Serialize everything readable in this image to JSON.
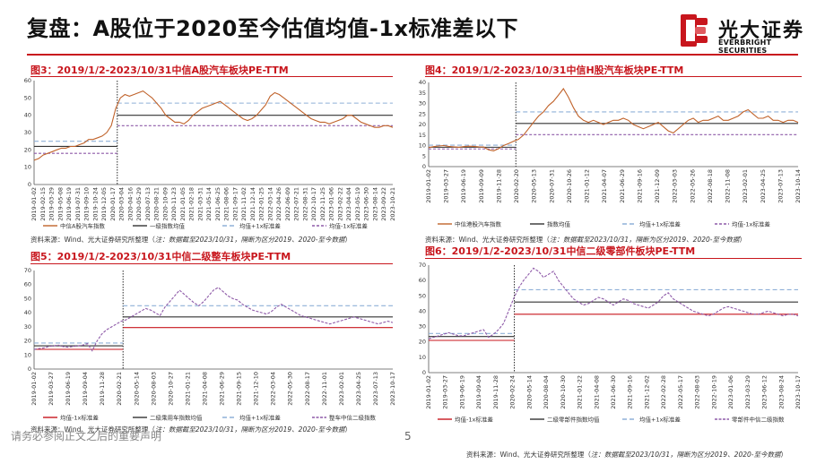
{
  "header": {
    "title": "复盘：A股位于2020至今估值均值-1x标准差以下",
    "logo_cn": "光大证券",
    "logo_en": "EVERBRIGHT SECURITIES"
  },
  "colors": {
    "brand_red": "#c8161d",
    "series": "#c0622a",
    "mean": "#333333",
    "upper": "#8fb0d8",
    "lower": "#8e5aa8",
    "purple_series": "#8e5aa8"
  },
  "figures": [
    {
      "title": "图3：2019/1/2-2023/10/31中信A股汽车板块PE-TTM",
      "source_prefix": "资料来源：Wind、光大证券研究所整理（",
      "source_note": "注：数据截至2023/10/31，隔断为区分2019、2020-至今数据",
      "source_suffix": "）",
      "chart_data": {
        "type": "line",
        "ylim": [
          0,
          60
        ],
        "yticks": [
          0,
          10,
          20,
          30,
          40,
          50,
          60
        ],
        "xticks": [
          "2019-01-02",
          "2019-02-15",
          "2019-03-29",
          "2019-05-08",
          "2019-06-19",
          "2019-07-31",
          "2019-09-10",
          "2019-10-24",
          "2019-12-05",
          "2020-01-17",
          "2020-03-04",
          "2020-04-16",
          "2020-05-29",
          "2020-07-13",
          "2020-08-21",
          "2020-10-09",
          "2020-11-23",
          "2021-01-05",
          "2021-02-18",
          "2021-03-31",
          "2021-05-14",
          "2021-06-25",
          "2021-08-06",
          "2021-09-17",
          "2021-11-02",
          "2021-12-14",
          "2022-01-25",
          "2022-03-14",
          "2022-04-26",
          "2022-06-09",
          "2022-07-21",
          "2022-08-31",
          "2022-10-17",
          "2022-11-25",
          "2023-01-06",
          "2023-02-22",
          "2023-04-04",
          "2023-05-19",
          "2023-06-30",
          "2023-08-14",
          "2023-09-22",
          "2023-10-21"
        ],
        "break_fraction": 0.232,
        "series": [
          {
            "name": "中信A股汽车指数",
            "role": "main",
            "values": [
              14,
              15,
              17,
              18,
              19,
              20,
              21,
              21,
              22,
              22,
              23,
              24,
              26,
              26,
              27,
              28,
              30,
              34,
              44,
              50,
              52,
              51,
              52,
              53,
              54,
              52,
              50,
              47,
              44,
              40,
              38,
              36,
              36,
              35,
              37,
              40,
              42,
              44,
              45,
              46,
              47,
              48,
              46,
              44,
              42,
              40,
              38,
              37,
              38,
              40,
              43,
              46,
              51,
              53,
              52,
              50,
              48,
              46,
              44,
              42,
              40,
              38,
              37,
              36,
              36,
              35,
              36,
              37,
              38,
              40,
              40,
              38,
              36,
              35,
              34,
              33,
              33,
              34,
              34,
              33
            ]
          },
          {
            "name": "一级指数均值",
            "role": "mean",
            "pre": 22,
            "post": 40
          },
          {
            "name": "均值+1x标准差",
            "role": "upper",
            "pre": 25,
            "post": 47
          },
          {
            "name": "均值-1x标准差",
            "role": "lower",
            "pre": 18,
            "post": 34
          }
        ],
        "legend": [
          "中信A股汽车指数",
          "一级指数均值",
          "均值+1x标准差",
          "均值-1x标准差"
        ]
      }
    },
    {
      "title": "图4：2019/1/2-2023/10/31中信H股汽车板块PE-TTM",
      "source_prefix": "资料来源：Wind、光大证券研究所整理（",
      "source_note": "注：数据截至2023/10/31，隔断为区分2019、2020-至今数据",
      "source_suffix": "）",
      "chart_data": {
        "type": "line",
        "ylim": [
          0,
          40
        ],
        "yticks": [
          0,
          5,
          10,
          15,
          20,
          25,
          30,
          35,
          40
        ],
        "xticks": [
          "2019-01-02",
          "2019-03-27",
          "2019-06-19",
          "2019-09-09",
          "2019-11-28",
          "2020-02-20",
          "2020-05-13",
          "2020-07-31",
          "2020-10-26",
          "2021-01-12",
          "2021-04-07",
          "2021-06-29",
          "2021-09-16",
          "2021-12-09",
          "2022-03-03",
          "2022-05-26",
          "2022-08-18",
          "2022-11-08",
          "2023-02-01",
          "2023-04-25",
          "2023-07-13",
          "2023-10-14"
        ],
        "break_fraction": 0.236,
        "series": [
          {
            "name": "中信港股汽车指数",
            "role": "main",
            "values": [
              9,
              9.5,
              9.8,
              10,
              9.6,
              9.4,
              9.2,
              9.5,
              9.7,
              9.6,
              9.4,
              9.3,
              8,
              7.5,
              8.5,
              10,
              11,
              12,
              13,
              15,
              18,
              21,
              24,
              26,
              29,
              31,
              34,
              37,
              33,
              28,
              24,
              22,
              21,
              22,
              21,
              20,
              21,
              22,
              22,
              23,
              22,
              20,
              19,
              18,
              19,
              20,
              21,
              19,
              17,
              16,
              18,
              20,
              22,
              23,
              21,
              22,
              22,
              23,
              24,
              22,
              22,
              23,
              24,
              26,
              27,
              25,
              23,
              23,
              24,
              22,
              22,
              21,
              22,
              22,
              21
            ]
          },
          {
            "name": "指数均值",
            "role": "mean",
            "pre": 9.2,
            "post": 20.5
          },
          {
            "name": "均值+1x标准差",
            "role": "upper",
            "pre": 10.2,
            "post": 26
          },
          {
            "name": "均值-1x标准差",
            "role": "lower",
            "pre": 8.4,
            "post": 15.2
          }
        ],
        "legend": [
          "中信港股汽车指数",
          "指数均值",
          "均值+1x标准差",
          "均值-1x标准差"
        ]
      }
    },
    {
      "title": "图5：2019/1/2-2023/10/31中信二级整车板块PE-TTM",
      "source_prefix": "资料来源：Wind、光大证券研究所整理（",
      "source_note": "注：数据截至2023/10/31，隔断为区分2019、2020-至今数据",
      "source_suffix": "）",
      "chart_data": {
        "type": "line",
        "ylim": [
          0,
          70
        ],
        "yticks": [
          0,
          10,
          20,
          30,
          40,
          50,
          60,
          70
        ],
        "xticks": [
          "2019-01-02",
          "2019-03-27",
          "2019-06-19",
          "2019-09-04",
          "2019-11-28",
          "2020-02-21",
          "2020-05-14",
          "2020-08-03",
          "2020-10-27",
          "2021-01-21",
          "2021-04-08",
          "2021-06-29",
          "2021-09-15",
          "2021-12-10",
          "2022-03-04",
          "2022-05-30",
          "2022-08-17",
          "2022-11-01",
          "2023-02-01",
          "2023-04-25",
          "2023-07-13",
          "2023-10-17"
        ],
        "break_fraction": 0.248,
        "series": [
          {
            "name": "整车中信二级指数",
            "role": "main",
            "values": [
              14,
              14.5,
              15,
              16,
              16.5,
              17,
              16,
              15.5,
              16,
              16.5,
              17,
              18,
              13,
              20,
              25,
              28,
              30,
              32,
              34,
              35,
              37,
              39,
              41,
              43,
              42,
              40,
              38,
              44,
              48,
              52,
              56,
              53,
              50,
              47,
              45,
              48,
              52,
              56,
              58,
              55,
              52,
              50,
              49,
              46,
              44,
              42,
              41,
              40,
              39,
              41,
              44,
              46,
              44,
              42,
              40,
              38,
              37,
              36,
              35,
              34,
              33,
              32,
              33,
              34,
              35,
              36,
              37,
              36,
              35,
              34,
              33,
              32,
              33,
              34,
              33
            ]
          },
          {
            "name": "二级乘用车指数均值",
            "role": "mean",
            "pre": 16.5,
            "post": 37
          },
          {
            "name": "均值+1x标准差",
            "role": "upper",
            "pre": 18.5,
            "post": 45
          },
          {
            "name": "均值-1x标准差",
            "role": "lower",
            "pre": 14,
            "post": 29.5
          }
        ],
        "legend": [
          "均值-1x标准差",
          "二级乘用车指数均值",
          "均值+1x标准差",
          "整车中信二级指数"
        ]
      }
    },
    {
      "title": "图6：2019/1/2-2023/10/31中信二级零部件板块PE-TTM",
      "source_prefix": "资料来源：Wind、光大证券研究所整理（",
      "source_note": "注：数据截至2023/10/31，隔断为区分2019、2020-至今数据",
      "source_suffix": "）",
      "chart_data": {
        "type": "line",
        "ylim": [
          0,
          70
        ],
        "yticks": [
          0,
          10,
          20,
          30,
          40,
          50,
          60,
          70
        ],
        "xticks": [
          "2019-01-02",
          "2019-03-27",
          "2019-06-19",
          "2019-09-04",
          "2019-11-28",
          "2020-02-24",
          "2020-05-14",
          "2020-08-04",
          "2020-10-30",
          "2021-01-22",
          "2021-04-08",
          "2021-06-30",
          "2021-09-16",
          "2021-12-02",
          "2022-02-28",
          "2022-05-17",
          "2022-08-03",
          "2022-10-19",
          "2023-01-06",
          "2023-03-29",
          "2023-06-12",
          "2023-08-24",
          "2023-10-17"
        ],
        "break_fraction": 0.232,
        "series": [
          {
            "name": "零部件中信二级指数",
            "role": "main",
            "values": [
              22,
              23,
              24,
              25,
              26,
              25,
              24,
              24,
              25,
              26,
              27,
              28,
              23,
              25,
              28,
              32,
              40,
              48,
              55,
              60,
              64,
              68,
              66,
              62,
              64,
              66,
              60,
              56,
              52,
              48,
              46,
              44,
              45,
              47,
              49,
              48,
              46,
              44,
              46,
              48,
              47,
              45,
              44,
              43,
              42,
              44,
              46,
              50,
              52,
              48,
              46,
              44,
              42,
              40,
              39,
              38,
              37,
              38,
              40,
              42,
              43,
              42,
              41,
              40,
              39,
              38,
              38,
              39,
              40,
              39,
              38,
              37,
              38,
              38,
              37
            ]
          },
          {
            "name": "二级零部件指数均值",
            "role": "mean",
            "pre": 23.5,
            "post": 46
          },
          {
            "name": "均值+1x标准差",
            "role": "upper",
            "pre": 25.5,
            "post": 54
          },
          {
            "name": "均值-1x标准差",
            "role": "lower",
            "pre": 21,
            "post": 38
          }
        ],
        "legend": [
          "均值-1x标准差",
          "二级零部件指数均值",
          "均值+1x标准差",
          "零部件中信二级指数"
        ]
      }
    }
  ],
  "footer": {
    "disclaimer": "请务必参阅正文之后的重要声明",
    "page": "5"
  }
}
